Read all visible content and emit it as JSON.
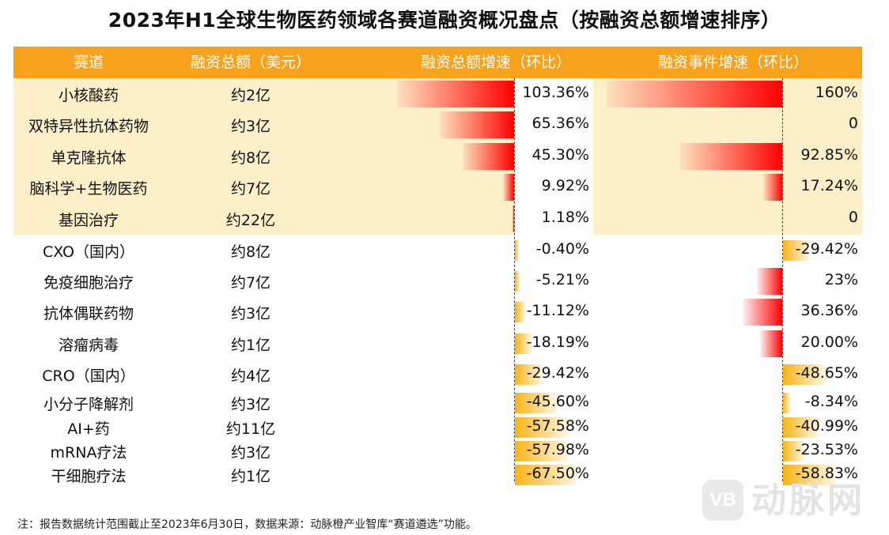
{
  "title": "2023年H1全球生物医药领域各赛道融资概况盘点（按融资总额增速排序）",
  "headers": {
    "track": "赛道",
    "amount": "融资总额（美元）",
    "amount_growth": "融资总额增速（环比）",
    "event_growth": "融资事件增速（环比）"
  },
  "colors": {
    "header": "#F7A21D",
    "highlight": "#FDEFC8",
    "positive_bar": "#FF0000",
    "negative_bar": "#F7B417"
  },
  "chart_data": {
    "type": "table",
    "title": "2023年H1全球生物医药领域各赛道融资概况盘点（按融资总额增速排序）",
    "columns": [
      "赛道",
      "融资总额（美元）",
      "融资总额增速（环比）",
      "融资事件增速（环比）"
    ],
    "rows": [
      {
        "track": "小核酸药",
        "amount": "约2亿",
        "amount_growth": 103.36,
        "amount_growth_label": "103.36%",
        "event_growth": 160,
        "event_growth_label": "160%",
        "highlight": true
      },
      {
        "track": "双特异性抗体药物",
        "amount": "约3亿",
        "amount_growth": 65.36,
        "amount_growth_label": "65.36%",
        "event_growth": 0,
        "event_growth_label": "0",
        "highlight": true
      },
      {
        "track": "单克隆抗体",
        "amount": "约8亿",
        "amount_growth": 45.3,
        "amount_growth_label": "45.30%",
        "event_growth": 92.85,
        "event_growth_label": "92.85%",
        "highlight": true
      },
      {
        "track": "脑科学+生物医药",
        "amount": "约7亿",
        "amount_growth": 9.92,
        "amount_growth_label": "9.92%",
        "event_growth": 17.24,
        "event_growth_label": "17.24%",
        "highlight": true
      },
      {
        "track": "基因治疗",
        "amount": "约22亿",
        "amount_growth": 1.18,
        "amount_growth_label": "1.18%",
        "event_growth": 0,
        "event_growth_label": "0",
        "highlight": true
      },
      {
        "track": "CXO（国内）",
        "amount": "约8亿",
        "amount_growth": -0.4,
        "amount_growth_label": "-0.40%",
        "event_growth": -29.42,
        "event_growth_label": "-29.42%",
        "highlight": false
      },
      {
        "track": "免疫细胞治疗",
        "amount": "约7亿",
        "amount_growth": -5.21,
        "amount_growth_label": "-5.21%",
        "event_growth": 23,
        "event_growth_label": "23%",
        "highlight": false
      },
      {
        "track": "抗体偶联药物",
        "amount": "约3亿",
        "amount_growth": -11.12,
        "amount_growth_label": "-11.12%",
        "event_growth": 36.36,
        "event_growth_label": "36.36%",
        "highlight": false
      },
      {
        "track": "溶瘤病毒",
        "amount": "约1亿",
        "amount_growth": -18.19,
        "amount_growth_label": "-18.19%",
        "event_growth": 20.0,
        "event_growth_label": "20.00%",
        "highlight": false
      },
      {
        "track": "CRO（国内）",
        "amount": "约4亿",
        "amount_growth": -29.42,
        "amount_growth_label": "-29.42%",
        "event_growth": -48.65,
        "event_growth_label": "-48.65%",
        "highlight": false
      },
      {
        "track": "小分子降解剂",
        "amount": "约3亿",
        "amount_growth": -45.6,
        "amount_growth_label": "-45.60%",
        "event_growth": -8.34,
        "event_growth_label": "-8.34%",
        "highlight": false
      },
      {
        "track": "AI+药",
        "amount": "约11亿",
        "amount_growth": -57.58,
        "amount_growth_label": "-57.58%",
        "event_growth": -40.99,
        "event_growth_label": "-40.99%",
        "highlight": false
      },
      {
        "track": "mRNA疗法",
        "amount": "约3亿",
        "amount_growth": -57.98,
        "amount_growth_label": "-57.98%",
        "event_growth": -23.53,
        "event_growth_label": "-23.53%",
        "highlight": false
      },
      {
        "track": "干细胞疗法",
        "amount": "约1亿",
        "amount_growth": -67.5,
        "amount_growth_label": "-67.50%",
        "event_growth": -58.83,
        "event_growth_label": "-58.83%",
        "highlight": false
      }
    ]
  },
  "footnote": "注：报告数据统计范围截止至2023年6月30日，数据来源：动脉橙产业智库“赛道遴选”功能。",
  "watermark": {
    "logo": "VB",
    "text": "动脉网"
  }
}
